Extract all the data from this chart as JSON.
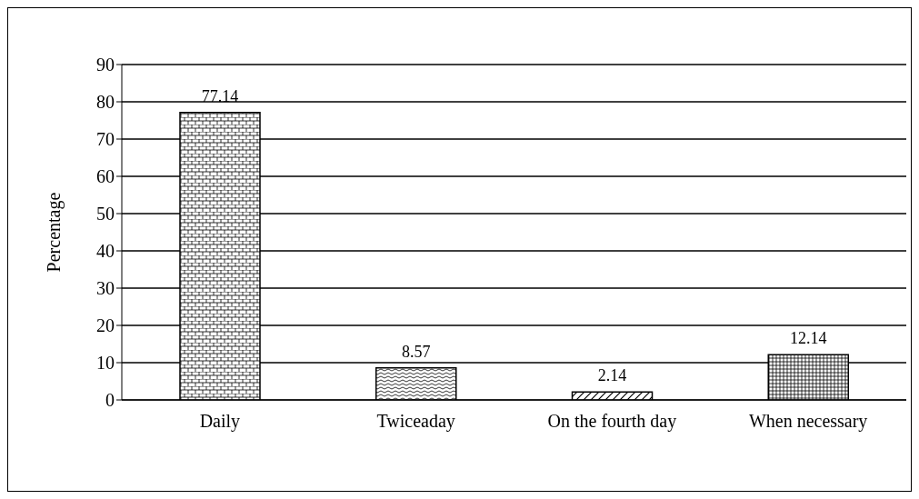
{
  "chart_data": {
    "type": "bar",
    "ylabel": "Percentage",
    "categories": [
      "Daily",
      "Twiceaday",
      "On the fourth day",
      "When necessary"
    ],
    "values": [
      77.14,
      8.57,
      2.14,
      12.14
    ],
    "colors": [
      "#000000",
      "#000000",
      "#000000",
      "#000000"
    ],
    "ylim": [
      0,
      90
    ],
    "yticks": [
      0,
      10,
      20,
      30,
      40,
      50,
      60,
      70,
      80,
      90
    ],
    "grid": "y",
    "data_labels": true
  }
}
